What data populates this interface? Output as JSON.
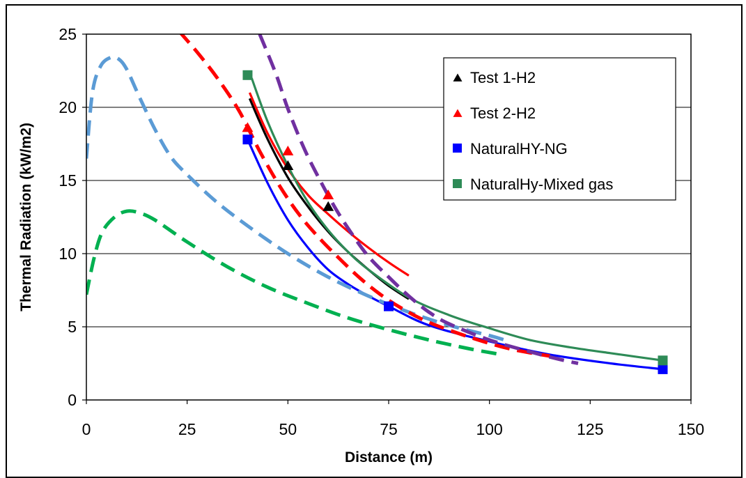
{
  "chart_data": {
    "type": "line",
    "xlabel": "Distance (m)",
    "ylabel": "Thermal Radiation (kW/m2)",
    "xlim": [
      0,
      150
    ],
    "ylim": [
      0,
      25
    ],
    "x_ticks": [
      "0",
      "25",
      "50",
      "75",
      "100",
      "125",
      "150"
    ],
    "y_ticks": [
      "0",
      "5",
      "10",
      "15",
      "20",
      "25"
    ],
    "grid": "horizontal",
    "legend_placement": "top-right",
    "legend": [
      {
        "label": "Test 1-H2",
        "marker": "triangle",
        "color": "#000000"
      },
      {
        "label": "Test 2-H2",
        "marker": "triangle",
        "color": "#ff0000"
      },
      {
        "label": "NaturalHY-NG",
        "marker": "square",
        "color": "#0000ff"
      },
      {
        "label": "NaturalHy-Mixed gas",
        "marker": "square",
        "color": "#2e8b57"
      }
    ],
    "series": [
      {
        "name": "Test 1-H2",
        "kind": "points",
        "marker": "triangle",
        "color": "#000000",
        "points": [
          [
            50,
            16.0
          ],
          [
            60,
            13.2
          ]
        ]
      },
      {
        "name": "Test 2-H2",
        "kind": "points",
        "marker": "triangle",
        "color": "#ff0000",
        "points": [
          [
            40,
            18.6
          ],
          [
            50,
            17.0
          ],
          [
            60,
            14.0
          ]
        ]
      },
      {
        "name": "NaturalHY-NG",
        "kind": "points",
        "marker": "square",
        "color": "#0000ff",
        "points": [
          [
            40,
            17.8
          ],
          [
            75,
            6.4
          ],
          [
            143,
            2.1
          ]
        ]
      },
      {
        "name": "NaturalHy-Mixed gas",
        "kind": "points",
        "marker": "square",
        "color": "#2e8b57",
        "points": [
          [
            40,
            22.2
          ],
          [
            143,
            2.7
          ]
        ]
      },
      {
        "kind": "line",
        "style": "solid",
        "color": "#000000",
        "points": [
          [
            40.5,
            20.6
          ],
          [
            45,
            17.8
          ],
          [
            50,
            15.2
          ],
          [
            55,
            13.2
          ],
          [
            60,
            11.5
          ],
          [
            65,
            10.1
          ],
          [
            70,
            8.9
          ],
          [
            75,
            7.8
          ],
          [
            80,
            6.9
          ]
        ]
      },
      {
        "kind": "line",
        "style": "solid",
        "color": "#ff0000",
        "points": [
          [
            40.5,
            21.0
          ],
          [
            45,
            18.2
          ],
          [
            50,
            15.8
          ],
          [
            55,
            14.0
          ],
          [
            60,
            12.7
          ],
          [
            65,
            11.5
          ],
          [
            70,
            10.4
          ],
          [
            75,
            9.4
          ],
          [
            80,
            8.5
          ]
        ]
      },
      {
        "kind": "line",
        "style": "solid",
        "color": "#0000ff",
        "points": [
          [
            40,
            17.8
          ],
          [
            45,
            14.8
          ],
          [
            50,
            12.3
          ],
          [
            55,
            10.4
          ],
          [
            60,
            8.9
          ],
          [
            65,
            7.9
          ],
          [
            70,
            7.1
          ],
          [
            75,
            6.4
          ],
          [
            85,
            5.1
          ],
          [
            100,
            4.0
          ],
          [
            115,
            3.1
          ],
          [
            130,
            2.5
          ],
          [
            143,
            2.1
          ]
        ]
      },
      {
        "kind": "line",
        "style": "solid",
        "color": "#2e8b57",
        "points": [
          [
            41,
            22.0
          ],
          [
            45,
            19.0
          ],
          [
            50,
            16.0
          ],
          [
            55,
            13.5
          ],
          [
            60,
            11.6
          ],
          [
            65,
            10.1
          ],
          [
            70,
            8.9
          ],
          [
            80,
            7.0
          ],
          [
            90,
            5.8
          ],
          [
            100,
            4.9
          ],
          [
            110,
            4.1
          ],
          [
            120,
            3.6
          ],
          [
            130,
            3.2
          ],
          [
            143,
            2.7
          ]
        ]
      },
      {
        "kind": "line",
        "style": "dashed",
        "color": "#5b9bd5",
        "points": [
          [
            0,
            16.5
          ],
          [
            1.5,
            21.0
          ],
          [
            3.5,
            22.8
          ],
          [
            6,
            23.4
          ],
          [
            8,
            23.3
          ],
          [
            10,
            22.6
          ],
          [
            13,
            20.8
          ],
          [
            17,
            18.5
          ],
          [
            21,
            16.6
          ],
          [
            25,
            15.4
          ],
          [
            32,
            13.6
          ],
          [
            40,
            11.9
          ],
          [
            50,
            10.0
          ],
          [
            60,
            8.4
          ],
          [
            70,
            7.1
          ],
          [
            80,
            6.0
          ],
          [
            90,
            5.1
          ],
          [
            100,
            4.4
          ],
          [
            105,
            4.0
          ]
        ]
      },
      {
        "kind": "line",
        "style": "dashed",
        "color": "#00b050",
        "points": [
          [
            0,
            7.2
          ],
          [
            2,
            9.8
          ],
          [
            4,
            11.5
          ],
          [
            7,
            12.5
          ],
          [
            10,
            12.9
          ],
          [
            13,
            12.8
          ],
          [
            17,
            12.3
          ],
          [
            25,
            10.8
          ],
          [
            35,
            9.1
          ],
          [
            45,
            7.7
          ],
          [
            55,
            6.6
          ],
          [
            65,
            5.6
          ],
          [
            75,
            4.8
          ],
          [
            85,
            4.1
          ],
          [
            95,
            3.5
          ],
          [
            103,
            3.1
          ]
        ]
      },
      {
        "kind": "line",
        "style": "dashed",
        "color": "#ff0000",
        "points": [
          [
            23,
            25.2
          ],
          [
            28,
            23.6
          ],
          [
            33,
            21.8
          ],
          [
            38,
            19.7
          ],
          [
            43,
            17.0
          ],
          [
            48,
            14.6
          ],
          [
            53,
            12.6
          ],
          [
            58,
            11.0
          ],
          [
            63,
            9.6
          ],
          [
            68,
            8.3
          ],
          [
            73,
            7.2
          ],
          [
            78,
            6.3
          ],
          [
            85,
            5.3
          ],
          [
            95,
            4.3
          ],
          [
            105,
            3.5
          ],
          [
            115,
            3.0
          ]
        ]
      },
      {
        "kind": "line",
        "style": "dashed",
        "color": "#7030a0",
        "points": [
          [
            43,
            25.0
          ],
          [
            47,
            22.3
          ],
          [
            50,
            19.9
          ],
          [
            54,
            17.2
          ],
          [
            58,
            15.0
          ],
          [
            62,
            13.0
          ],
          [
            66,
            11.3
          ],
          [
            70,
            9.8
          ],
          [
            75,
            8.4
          ],
          [
            80,
            7.1
          ],
          [
            85,
            6.0
          ],
          [
            90,
            5.2
          ],
          [
            100,
            4.1
          ],
          [
            110,
            3.3
          ],
          [
            117,
            2.8
          ],
          [
            122,
            2.5
          ]
        ]
      }
    ]
  }
}
